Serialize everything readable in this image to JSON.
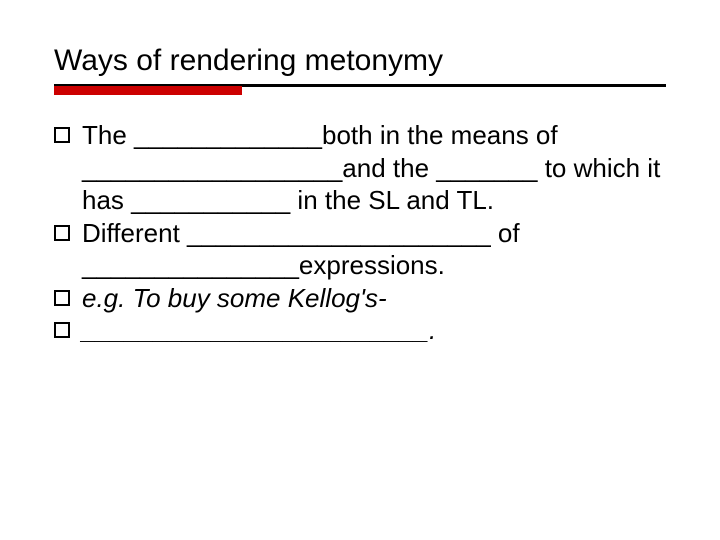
{
  "slide": {
    "title": "Ways of rendering metonymy",
    "title_underline_color": "#000000",
    "title_accent_color": "#cc0000",
    "title_fontsize": 30,
    "body_fontsize": 26,
    "background_color": "#ffffff",
    "bullet_marker": {
      "shape": "hollow-square",
      "border_color": "#000000",
      "size": 16
    },
    "bullets": [
      {
        "text": "The _____________both in the means of __________________and the _______ to which it has ___________ in the SL and TL.",
        "italic": false
      },
      {
        "text": "Different _____________________ of _______________expressions.",
        "italic": false
      },
      {
        "text": "e.g. To buy some Kellog's-",
        "italic": true
      },
      {
        "text": "________________________.",
        "italic": true
      }
    ]
  }
}
